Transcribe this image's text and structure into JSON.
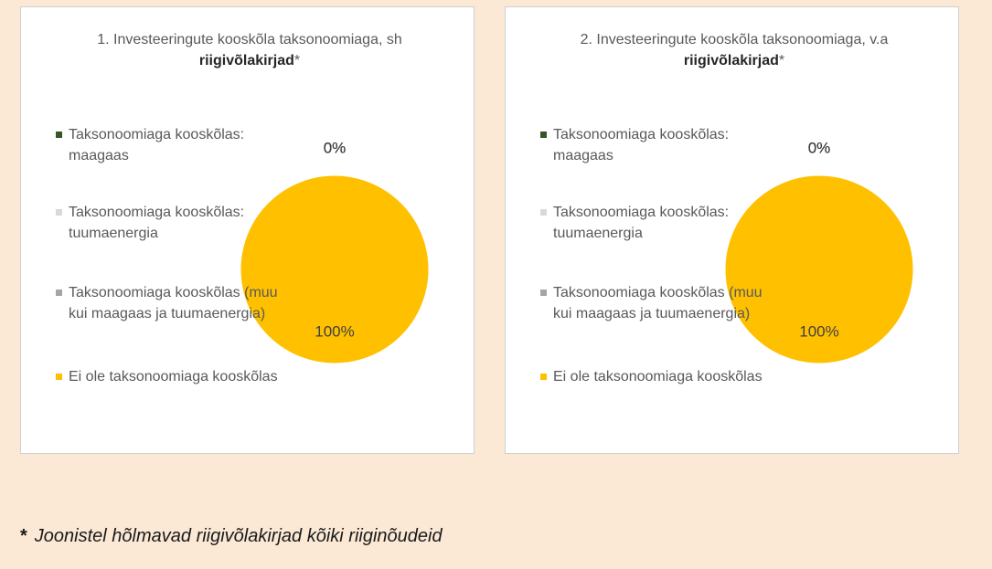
{
  "charts": [
    {
      "chart_data": {
        "type": "pie",
        "title": [
          "1. Investeeringute kooskõla taksonoomiaga, sh ",
          "riigivõlakirjad",
          "*"
        ],
        "categories": [
          "Taksonoomiaga kooskõlas: maagaas",
          "Taksonoomiaga kooskõlas: tuumaenergia",
          "Taksonoomiaga kooskõlas (muu kui maagaas ja tuumaenergia)",
          "Ei ole taksonoomiaga kooskõlas"
        ],
        "values": [
          0,
          0,
          0,
          100
        ],
        "value_labels": [
          "0%",
          "0%",
          "0%",
          "100%"
        ],
        "colors": [
          "#375623",
          "#d9d9d9",
          "#a5a5a5",
          "#ffc000"
        ]
      }
    },
    {
      "chart_data": {
        "type": "pie",
        "title": [
          "2. Investeeringute kooskõla taksonoomiaga, v.a ",
          "riigivõlakirjad",
          "*"
        ],
        "categories": [
          "Taksonoomiaga kooskõlas: maagaas",
          "Taksonoomiaga kooskõlas: tuumaenergia",
          "Taksonoomiaga kooskõlas (muu kui maagaas ja tuumaenergia)",
          "Ei ole taksonoomiaga kooskõlas"
        ],
        "values": [
          0,
          0,
          0,
          100
        ],
        "value_labels": [
          "0%",
          "0%",
          "0%",
          "100%"
        ],
        "colors": [
          "#375623",
          "#d9d9d9",
          "#a5a5a5",
          "#ffc000"
        ]
      }
    }
  ],
  "footnote": [
    "*",
    "Joonistel hõlmavad riigivõlakirjad kõiki riiginõudeid"
  ]
}
